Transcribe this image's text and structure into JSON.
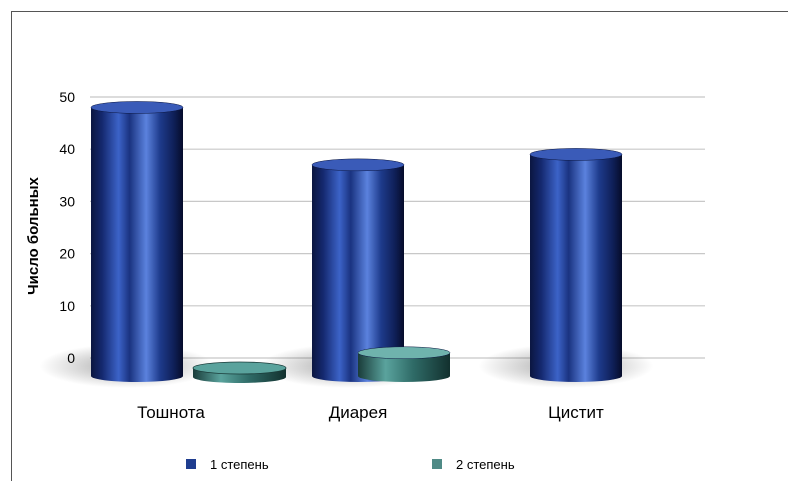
{
  "chart_data": {
    "type": "bar",
    "categories": [
      "Тошнота",
      "Диарея",
      "Цистит"
    ],
    "series": [
      {
        "name": "1 степень",
        "values": [
          48,
          37,
          39
        ],
        "color": "#1f3d8f"
      },
      {
        "name": "2 степень",
        "values": [
          0,
          1,
          0
        ],
        "color": "#4f8a86"
      }
    ],
    "ylabel": "Число больных",
    "ylim": [
      0,
      50
    ],
    "yticks": [
      "0",
      "10",
      "20",
      "30",
      "40",
      "50"
    ],
    "grid": true,
    "legend_position": "bottom"
  }
}
